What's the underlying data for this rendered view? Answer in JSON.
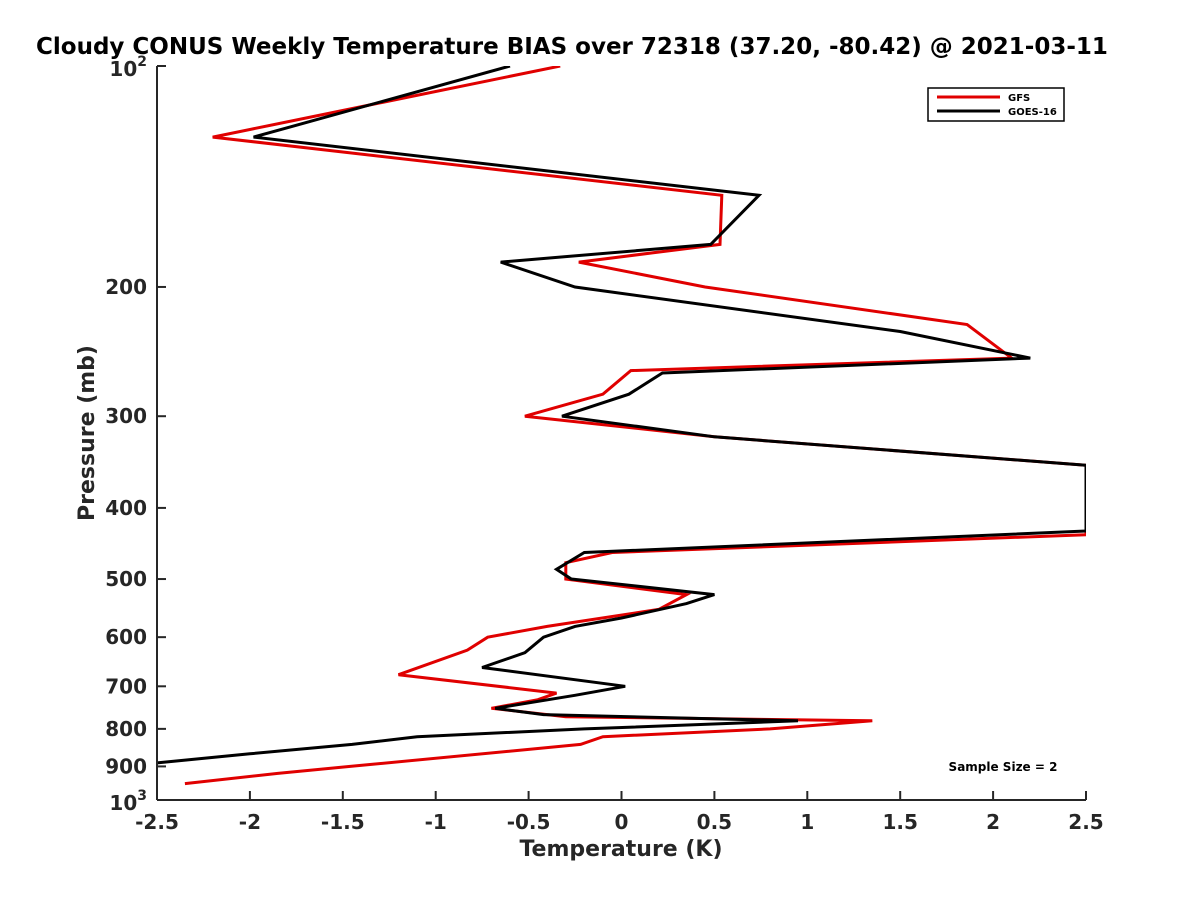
{
  "chart_data": {
    "type": "line",
    "title": "Cloudy CONUS Weekly Temperature BIAS over 72318 (37.20, -80.42) @ 2021-03-11",
    "xlabel": "Temperature (K)",
    "ylabel": "Pressure (mb)",
    "xlim": [
      -2.5,
      2.5
    ],
    "ylim": [
      100,
      1000
    ],
    "yscale": "log",
    "y_reversed": true,
    "x_ticks": [
      "-2.5",
      "-2",
      "-1.5",
      "-1",
      "-0.5",
      "0",
      "0.5",
      "1",
      "1.5",
      "2",
      "2.5"
    ],
    "y_ticks": [
      {
        "value": 100,
        "base": "10",
        "exp": "2"
      },
      {
        "value": 200,
        "label": "200"
      },
      {
        "value": 300,
        "label": "300"
      },
      {
        "value": 400,
        "label": "400"
      },
      {
        "value": 500,
        "label": "500"
      },
      {
        "value": 600,
        "label": "600"
      },
      {
        "value": 700,
        "label": "700"
      },
      {
        "value": 800,
        "label": "800"
      },
      {
        "value": 900,
        "label": "900"
      },
      {
        "value": 1000,
        "base": "10",
        "exp": "3"
      }
    ],
    "legend_position": "top-right",
    "annotation": "Sample Size = 2",
    "series": [
      {
        "name": "GFS",
        "color": "#e00000",
        "points": [
          [
            -0.33,
            100
          ],
          [
            -2.2,
            125
          ],
          [
            0.54,
            150
          ],
          [
            0.53,
            175
          ],
          [
            -0.23,
            185
          ],
          [
            0.45,
            200
          ],
          [
            1.86,
            225
          ],
          [
            2.1,
            250
          ],
          [
            0.05,
            260
          ],
          [
            -0.1,
            280
          ],
          [
            -0.52,
            300
          ],
          [
            0.5,
            320
          ],
          [
            2.5,
            350
          ],
          [
            2.5,
            435
          ],
          [
            -0.05,
            460
          ],
          [
            -0.3,
            475
          ],
          [
            -0.3,
            500
          ],
          [
            0.35,
            525
          ],
          [
            0.2,
            550
          ],
          [
            -0.4,
            580
          ],
          [
            -0.72,
            600
          ],
          [
            -0.83,
            625
          ],
          [
            -1.2,
            675
          ],
          [
            -0.35,
            715
          ],
          [
            -0.45,
            730
          ],
          [
            -0.7,
            750
          ],
          [
            -0.3,
            770
          ],
          [
            1.35,
            780
          ],
          [
            0.8,
            800
          ],
          [
            -0.1,
            820
          ],
          [
            -0.22,
            840
          ],
          [
            -1.46,
            900
          ],
          [
            -1.85,
            920
          ],
          [
            -2.35,
            950
          ]
        ]
      },
      {
        "name": "GOES-16",
        "color": "#000000",
        "points": [
          [
            -0.6,
            100
          ],
          [
            -1.98,
            125
          ],
          [
            0.74,
            150
          ],
          [
            0.48,
            175
          ],
          [
            -0.65,
            185
          ],
          [
            -0.25,
            200
          ],
          [
            1.5,
            230
          ],
          [
            2.2,
            250
          ],
          [
            0.22,
            262
          ],
          [
            0.04,
            280
          ],
          [
            -0.32,
            300
          ],
          [
            0.5,
            320
          ],
          [
            2.5,
            350
          ],
          [
            2.5,
            430
          ],
          [
            -0.2,
            460
          ],
          [
            -0.35,
            485
          ],
          [
            -0.27,
            500
          ],
          [
            0.5,
            525
          ],
          [
            0.35,
            540
          ],
          [
            0.0,
            565
          ],
          [
            -0.25,
            580
          ],
          [
            -0.42,
            600
          ],
          [
            -0.52,
            630
          ],
          [
            -0.75,
            660
          ],
          [
            0.02,
            700
          ],
          [
            -0.25,
            720
          ],
          [
            -0.68,
            750
          ],
          [
            -0.42,
            765
          ],
          [
            0.95,
            780
          ],
          [
            -0.2,
            800
          ],
          [
            -1.1,
            820
          ],
          [
            -1.45,
            840
          ],
          [
            -2.0,
            865
          ],
          [
            -2.5,
            890
          ]
        ]
      }
    ]
  }
}
